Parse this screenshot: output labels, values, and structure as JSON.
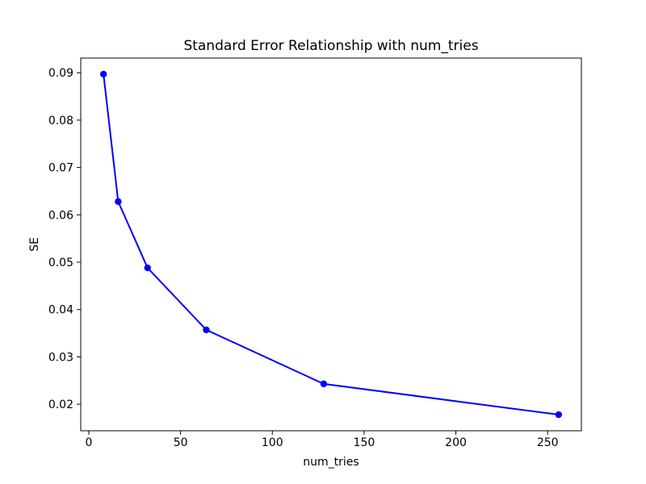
{
  "chart_data": {
    "type": "line",
    "title": "Standard Error Relationship with num_tries",
    "xlabel": "num_tries",
    "ylabel": "SE",
    "x": [
      8,
      16,
      32,
      64,
      128,
      256
    ],
    "y": [
      0.0897,
      0.0628,
      0.0488,
      0.0357,
      0.0243,
      0.0178
    ],
    "xlim": [
      -4.4,
      268.4
    ],
    "ylim": [
      0.0144,
      0.0931
    ],
    "xticks": [
      0,
      50,
      100,
      150,
      200,
      250
    ],
    "yticks": [
      0.02,
      0.03,
      0.04,
      0.05,
      0.06,
      0.07,
      0.08,
      0.09
    ],
    "ytick_decimals": 2,
    "grid": false,
    "legend": null,
    "line_color": "#0000ff",
    "marker": "circle",
    "background_color": "#ffffff",
    "spine_color": "#000000"
  }
}
